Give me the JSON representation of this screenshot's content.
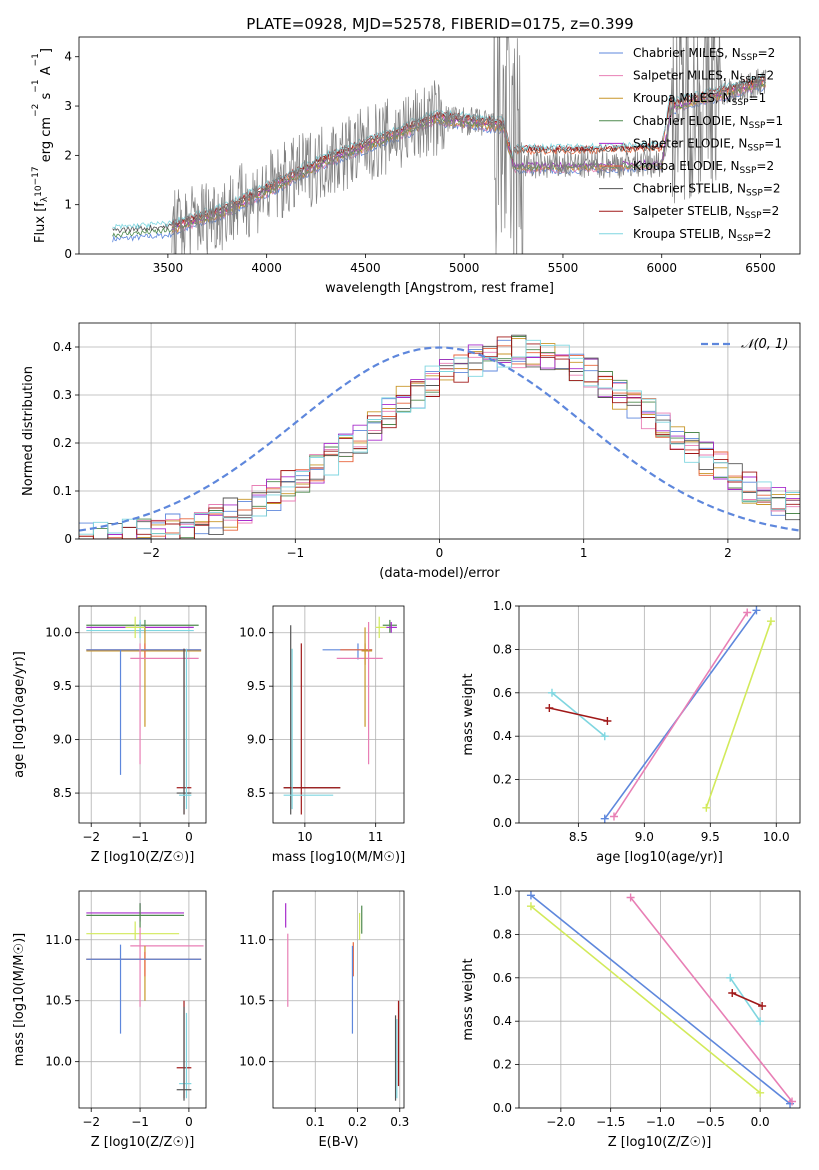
{
  "figure_title": "PLATE=0928, MJD=52578, FIBERID=0175, z=0.399",
  "colors": {
    "Chabrier MILES": "#5e87dc",
    "Salpeter MILES": "#e87fb5",
    "Kroupa MILES": "#c89628",
    "Chabrier ELODIE": "#4f8a4f",
    "Salpeter ELODIE": "#a82ccc",
    "Kroupa ELODIE": "#e8643c",
    "Chabrier STELIB": "#555555",
    "Salpeter STELIB": "#a01818",
    "Kroupa STELIB": "#7fd6e0",
    "data": "#808080",
    "lime": "#d2ea5a",
    "normal": "#5e87dc",
    "grid": "#b0b0b0"
  },
  "chart_data": [
    {
      "id": "spectrum",
      "type": "line",
      "xlabel": "wavelength [Angstrom, rest frame]",
      "ylabel_parts": [
        "Flux [f",
        "λ",
        "10",
        "−17",
        " erg cm",
        "−2",
        " s",
        "−1",
        " A",
        "−1",
        "]"
      ],
      "xlim": [
        3050,
        6700
      ],
      "ylim": [
        0,
        4.4
      ],
      "xticks": [
        3500,
        4000,
        4500,
        5000,
        5500,
        6000,
        6500
      ],
      "yticks": [
        0,
        1,
        2,
        3,
        4
      ],
      "grid": false,
      "legend_position": "upper right",
      "legend": [
        {
          "name": "Chabrier MILES",
          "n": "2"
        },
        {
          "name": "Salpeter MILES",
          "n": "2"
        },
        {
          "name": "Kroupa MILES",
          "n": "1"
        },
        {
          "name": "Chabrier ELODIE",
          "n": "1"
        },
        {
          "name": "Salpeter ELODIE",
          "n": "1"
        },
        {
          "name": "Kroupa ELODIE",
          "n": "2"
        },
        {
          "name": "Chabrier STELIB",
          "n": "2"
        },
        {
          "name": "Salpeter STELIB",
          "n": "2"
        },
        {
          "name": "Kroupa STELIB",
          "n": "2"
        }
      ],
      "data_range": [
        3520,
        6530
      ],
      "model_range_full": [
        3220,
        6530
      ],
      "model_shape": [
        [
          3220,
          0.42
        ],
        [
          3500,
          0.5
        ],
        [
          3800,
          0.9
        ],
        [
          4000,
          1.3
        ],
        [
          4300,
          1.9
        ],
        [
          4600,
          2.35
        ],
        [
          4850,
          2.75
        ],
        [
          5000,
          2.7
        ],
        [
          5200,
          2.6
        ],
        [
          5250,
          1.8
        ],
        [
          5500,
          1.8
        ],
        [
          6000,
          1.85
        ],
        [
          6050,
          3.0
        ],
        [
          6530,
          3.5
        ]
      ]
    },
    {
      "id": "residuals",
      "type": "line",
      "xlabel": "(data-model)/error",
      "ylabel": "Normed distribution",
      "xlim": [
        -2.5,
        2.5
      ],
      "ylim": [
        0,
        0.45
      ],
      "xticks": [
        -2,
        -1,
        0,
        1,
        2
      ],
      "yticks": [
        0.0,
        0.1,
        0.2,
        0.3,
        0.4
      ],
      "grid": true,
      "legend": [
        {
          "name": "N(0,1)",
          "style": "dashed"
        }
      ],
      "legend_position": "upper right",
      "normal": {
        "mean": 0,
        "sigma": 1
      },
      "histogram": {
        "center": 0.55,
        "sigma": 1.0,
        "peak": 0.39,
        "bin_width": 0.1
      }
    },
    {
      "id": "age_vs_Z",
      "type": "scatter",
      "xlabel": "Z [log10(Z/Z☉)]",
      "ylabel": "age  [log10(age/yr)]",
      "xlim": [
        -2.25,
        0.35
      ],
      "ylim": [
        8.22,
        10.25
      ],
      "xticks": [
        -2,
        -1,
        0
      ],
      "yticks": [
        8.5,
        9.0,
        9.5,
        10.0
      ],
      "grid": true,
      "errorbars": [
        {
          "model": "Chabrier ELODIE",
          "x": -0.9,
          "y": 10.07,
          "x_range": [
            -2.1,
            0.2
          ],
          "y_range": [
            10.0,
            10.12
          ]
        },
        {
          "model": "Salpeter ELODIE",
          "x": -1.0,
          "y": 10.05,
          "x_range": [
            -2.1,
            0.1
          ],
          "y_range": [
            10.0,
            10.1
          ]
        },
        {
          "model": "Kroupa STELIB",
          "x": -1.0,
          "y": 10.02,
          "x_range": [
            -2.1,
            0.1
          ],
          "y_range": [
            9.95,
            10.12
          ]
        },
        {
          "model": "Kroupa MILES",
          "x": -0.9,
          "y": 9.83,
          "x_range": [
            -2.1,
            0.25
          ],
          "y_range": [
            9.12,
            10.05
          ]
        },
        {
          "model": "Kroupa ELODIE",
          "x": -0.9,
          "y": 9.84,
          "x_range": [
            -2.1,
            0.25
          ],
          "y_range": [
            9.75,
            9.9
          ]
        },
        {
          "model": "Chabrier MILES",
          "x": -1.4,
          "y": 9.84,
          "x_range": [
            -2.1,
            0.25
          ],
          "y_range": [
            8.67,
            9.84
          ]
        },
        {
          "model": "Salpeter MILES",
          "x": -1.0,
          "y": 9.76,
          "x_range": [
            -1.2,
            0.2
          ],
          "y_range": [
            8.77,
            9.9
          ]
        },
        {
          "model": "lime",
          "x": -1.1,
          "y": 10.05,
          "x_range": [
            -1.3,
            -0.9
          ],
          "y_range": [
            9.95,
            10.15
          ]
        },
        {
          "model": "Salpeter STELIB",
          "x": -0.1,
          "y": 8.55,
          "x_range": [
            -0.25,
            0.05
          ],
          "y_range": [
            8.3,
            9.85
          ]
        },
        {
          "model": "Chabrier STELIB",
          "x": -0.1,
          "y": 8.5,
          "x_range": [
            -0.25,
            0.05
          ],
          "y_range": [
            8.3,
            9.85
          ]
        },
        {
          "model": "Kroupa STELIB",
          "x": -0.05,
          "y": 8.48,
          "x_range": [
            -0.2,
            0.05
          ],
          "y_range": [
            8.35,
            9.85
          ]
        }
      ]
    },
    {
      "id": "age_vs_mass",
      "type": "scatter",
      "xlabel": "mass [log10(M/M☉)]",
      "ylabel": "",
      "xlim": [
        9.55,
        11.4
      ],
      "ylim": [
        8.22,
        10.25
      ],
      "xticks": [
        10,
        11
      ],
      "yticks": [
        8.5,
        9.0,
        9.5,
        10.0
      ],
      "grid": true,
      "errorbars": [
        {
          "model": "Chabrier STELIB",
          "x": 9.8,
          "y": 8.55,
          "x_range": [
            9.7,
            10.5
          ],
          "y_range": [
            8.3,
            10.07
          ]
        },
        {
          "model": "Salpeter STELIB",
          "x": 9.95,
          "y": 8.55,
          "x_range": [
            9.7,
            10.5
          ],
          "y_range": [
            8.3,
            9.9
          ]
        },
        {
          "model": "Kroupa STELIB",
          "x": 9.82,
          "y": 8.48,
          "x_range": [
            9.7,
            10.4
          ],
          "y_range": [
            8.35,
            9.85
          ]
        },
        {
          "model": "Chabrier MILES",
          "x": 10.75,
          "y": 9.84,
          "x_range": [
            10.25,
            10.95
          ],
          "y_range": [
            9.75,
            9.9
          ]
        },
        {
          "model": "Kroupa ELODIE",
          "x": 10.85,
          "y": 9.84,
          "x_range": [
            10.5,
            10.95
          ],
          "y_range": [
            9.7,
            9.9
          ]
        },
        {
          "model": "Salpeter MILES",
          "x": 10.9,
          "y": 9.76,
          "x_range": [
            10.45,
            11.1
          ],
          "y_range": [
            8.77,
            10.1
          ]
        },
        {
          "model": "Kroupa MILES",
          "x": 10.85,
          "y": 9.83,
          "x_range": [
            10.8,
            10.95
          ],
          "y_range": [
            9.12,
            10.05
          ]
        },
        {
          "model": "lime",
          "x": 11.05,
          "y": 10.05,
          "x_range": [
            11.0,
            11.15
          ],
          "y_range": [
            9.95,
            10.15
          ]
        },
        {
          "model": "Chabrier ELODIE",
          "x": 11.2,
          "y": 10.07,
          "x_range": [
            11.1,
            11.3
          ],
          "y_range": [
            10.0,
            10.12
          ]
        },
        {
          "model": "Salpeter ELODIE",
          "x": 11.22,
          "y": 10.05,
          "x_range": [
            11.15,
            11.3
          ],
          "y_range": [
            10.0,
            10.1
          ]
        }
      ]
    },
    {
      "id": "weight_vs_age",
      "type": "line",
      "xlabel": "age  [log10(age/yr)]",
      "ylabel": "mass weight",
      "xlim": [
        8.05,
        10.18
      ],
      "ylim": [
        0,
        1.0
      ],
      "xticks": [
        8.5,
        9.0,
        9.5,
        10.0
      ],
      "yticks": [
        0.0,
        0.2,
        0.4,
        0.6,
        0.8,
        1.0
      ],
      "grid": true,
      "series": [
        {
          "model": "Chabrier MILES",
          "x": [
            8.7,
            9.85
          ],
          "y": [
            0.02,
            0.98
          ]
        },
        {
          "model": "Salpeter MILES",
          "x": [
            8.77,
            9.78
          ],
          "y": [
            0.03,
            0.97
          ]
        },
        {
          "model": "lime",
          "x": [
            9.47,
            9.96
          ],
          "y": [
            0.07,
            0.93
          ]
        },
        {
          "model": "Kroupa STELIB",
          "x": [
            8.3,
            8.7
          ],
          "y": [
            0.6,
            0.4
          ]
        },
        {
          "model": "Salpeter STELIB",
          "x": [
            8.28,
            8.72
          ],
          "y": [
            0.53,
            0.47
          ]
        }
      ]
    },
    {
      "id": "mass_vs_Z",
      "type": "scatter",
      "xlabel": "Z [log10(Z/Z☉)]",
      "ylabel": "mass [log10(M/M☉)]",
      "xlim": [
        -2.25,
        0.35
      ],
      "ylim": [
        9.62,
        11.4
      ],
      "xticks": [
        -2,
        -1,
        0
      ],
      "yticks": [
        10.0,
        10.5,
        11.0
      ],
      "grid": true,
      "errorbars": [
        {
          "model": "Salpeter ELODIE",
          "x": -1.0,
          "y": 11.22,
          "x_range": [
            -2.1,
            -0.1
          ],
          "y_range": [
            11.15,
            11.3
          ]
        },
        {
          "model": "Chabrier ELODIE",
          "x": -1.0,
          "y": 11.2,
          "x_range": [
            -2.1,
            -0.1
          ],
          "y_range": [
            11.1,
            11.3
          ]
        },
        {
          "model": "lime",
          "x": -1.1,
          "y": 11.05,
          "x_range": [
            -2.1,
            -0.2
          ],
          "y_range": [
            11.0,
            11.15
          ]
        },
        {
          "model": "Salpeter MILES",
          "x": -1.0,
          "y": 10.95,
          "x_range": [
            -1.2,
            0.3
          ],
          "y_range": [
            10.45,
            11.1
          ]
        },
        {
          "model": "Kroupa MILES",
          "x": -0.9,
          "y": 10.84,
          "x_range": [
            -2.1,
            0.25
          ],
          "y_range": [
            10.5,
            10.95
          ]
        },
        {
          "model": "Kroupa ELODIE",
          "x": -0.9,
          "y": 10.84,
          "x_range": [
            -2.1,
            0.25
          ],
          "y_range": [
            10.7,
            10.9
          ]
        },
        {
          "model": "Chabrier MILES",
          "x": -1.4,
          "y": 10.84,
          "x_range": [
            -2.1,
            0.25
          ],
          "y_range": [
            10.23,
            10.96
          ]
        },
        {
          "model": "Salpeter STELIB",
          "x": -0.1,
          "y": 9.95,
          "x_range": [
            -0.25,
            0.05
          ],
          "y_range": [
            9.7,
            10.5
          ]
        },
        {
          "model": "Kroupa STELIB",
          "x": -0.05,
          "y": 9.82,
          "x_range": [
            -0.2,
            0.05
          ],
          "y_range": [
            9.7,
            10.4
          ]
        },
        {
          "model": "Chabrier STELIB",
          "x": -0.1,
          "y": 9.77,
          "x_range": [
            -0.25,
            0.05
          ],
          "y_range": [
            9.68,
            10.45
          ]
        }
      ]
    },
    {
      "id": "mass_vs_EBV",
      "type": "scatter",
      "xlabel": "E(B-V)",
      "ylabel": "",
      "xlim": [
        0.0,
        0.31
      ],
      "ylim": [
        9.62,
        11.4
      ],
      "xticks": [
        0.1,
        0.2,
        0.3
      ],
      "yticks": [
        10.0,
        10.5,
        11.0
      ],
      "grid": true,
      "errorbars": [
        {
          "model": "Salpeter ELODIE",
          "x": 0.03,
          "y_range": [
            11.1,
            11.3
          ]
        },
        {
          "model": "Salpeter MILES",
          "x": 0.035,
          "y_range": [
            10.45,
            11.05
          ]
        },
        {
          "model": "Kroupa ELODIE",
          "x": 0.19,
          "y_range": [
            10.7,
            10.98
          ]
        },
        {
          "model": "Chabrier MILES",
          "x": 0.188,
          "y_range": [
            10.23,
            10.95
          ]
        },
        {
          "model": "lime",
          "x": 0.205,
          "y_range": [
            11.0,
            11.22
          ]
        },
        {
          "model": "Chabrier ELODIE",
          "x": 0.21,
          "y_range": [
            11.05,
            11.28
          ]
        },
        {
          "model": "Chabrier STELIB",
          "x": 0.29,
          "y_range": [
            9.68,
            10.38
          ]
        },
        {
          "model": "Kroupa STELIB",
          "x": 0.293,
          "y_range": [
            9.7,
            10.35
          ]
        },
        {
          "model": "Salpeter STELIB",
          "x": 0.297,
          "y_range": [
            9.8,
            10.5
          ]
        }
      ]
    },
    {
      "id": "weight_vs_Z",
      "type": "line",
      "xlabel": "Z [log10(Z/Z☉)]",
      "ylabel": "mass weight",
      "xlim": [
        -2.42,
        0.4
      ],
      "ylim": [
        0,
        1.0
      ],
      "xticks": [
        -2.0,
        -1.5,
        -1.0,
        -0.5,
        0.0
      ],
      "yticks": [
        0.0,
        0.2,
        0.4,
        0.6,
        0.8,
        1.0
      ],
      "grid": true,
      "series": [
        {
          "model": "Chabrier MILES",
          "x": [
            -2.3,
            0.3
          ],
          "y": [
            0.98,
            0.02
          ]
        },
        {
          "model": "lime",
          "x": [
            -2.3,
            0.0
          ],
          "y": [
            0.93,
            0.07
          ]
        },
        {
          "model": "Salpeter MILES",
          "x": [
            -1.3,
            0.32
          ],
          "y": [
            0.97,
            0.03
          ]
        },
        {
          "model": "Kroupa STELIB",
          "x": [
            -0.3,
            0.0
          ],
          "y": [
            0.6,
            0.4
          ]
        },
        {
          "model": "Salpeter STELIB",
          "x": [
            -0.28,
            0.02
          ],
          "y": [
            0.53,
            0.47
          ]
        }
      ]
    }
  ]
}
